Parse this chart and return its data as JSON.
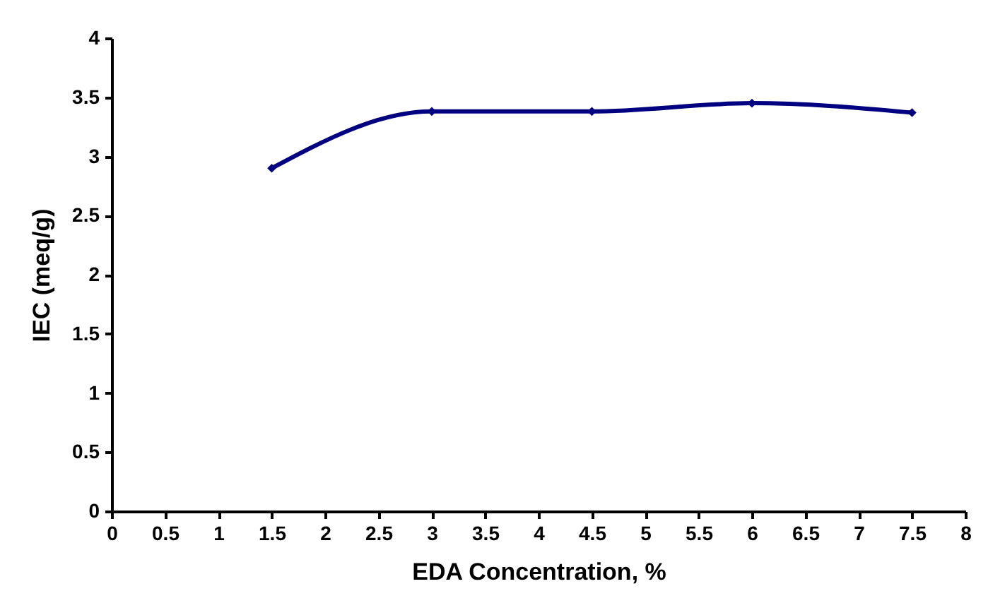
{
  "chart_data": {
    "type": "line",
    "xlabel": "EDA Concentration, %",
    "ylabel": "IEC (meq/g)",
    "x": [
      1.5,
      3,
      4.5,
      6,
      7.5
    ],
    "series": [
      {
        "color": "#000080",
        "values": [
          2.9,
          3.38,
          3.38,
          3.45,
          3.37
        ]
      }
    ],
    "xlim": [
      0,
      8
    ],
    "xticks": [
      0,
      0.5,
      1,
      1.5,
      2,
      2.5,
      3,
      3.5,
      4,
      4.5,
      5,
      5.5,
      6,
      6.5,
      7,
      7.5,
      8
    ],
    "ylim": [
      0,
      4
    ],
    "yticks": [
      0,
      0.5,
      1,
      1.5,
      2,
      2.5,
      3,
      3.5,
      4
    ],
    "grid": false,
    "legend": false,
    "marker": "diamond",
    "line_style": "solid"
  }
}
